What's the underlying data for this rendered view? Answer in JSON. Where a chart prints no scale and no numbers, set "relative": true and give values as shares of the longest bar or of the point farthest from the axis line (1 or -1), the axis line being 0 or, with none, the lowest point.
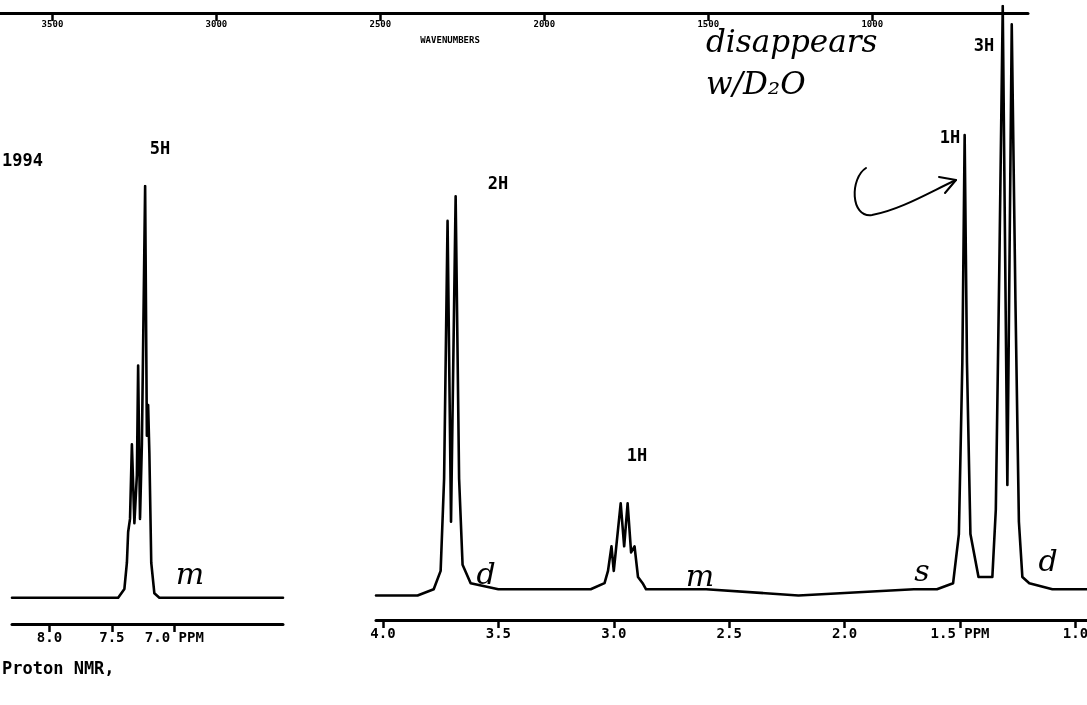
{
  "chart_data": [
    {
      "type": "line",
      "relative": true,
      "color": "#000000",
      "marker": "none",
      "grid": false,
      "x": [
        8.3,
        8.0,
        7.6,
        7.45,
        7.4,
        7.38,
        7.37,
        7.355,
        7.34,
        7.32,
        7.3,
        7.29,
        7.275,
        7.26,
        7.234,
        7.22,
        7.21,
        7.2,
        7.185,
        7.16,
        7.12,
        6.8,
        6.13
      ],
      "values": [
        0.06,
        0.06,
        0.06,
        0.06,
        0.08,
        0.14,
        0.21,
        0.24,
        0.41,
        0.23,
        0.34,
        0.59,
        0.24,
        0.41,
        1.0,
        0.43,
        0.5,
        0.39,
        0.14,
        0.07,
        0.06,
        0.06,
        0.06
      ],
      "xlim": [
        8.3,
        6.13
      ],
      "xticks": [
        {
          "value": 8.0,
          "label": "8.0"
        },
        {
          "value": 7.5,
          "label": "7.5"
        },
        {
          "value": 7.0,
          "label": "7.0 PPM"
        }
      ],
      "annotations": [
        "1994",
        "5H",
        "m",
        "Proton NMR,"
      ]
    },
    {
      "type": "line",
      "relative": true,
      "color": "#000000",
      "marker": "none",
      "grid": false,
      "x": [
        4.03,
        3.85,
        3.78,
        3.75,
        3.735,
        3.72,
        3.705,
        3.685,
        3.67,
        3.655,
        3.62,
        3.5,
        3.1,
        3.04,
        3.025,
        3.01,
        3.0,
        2.97,
        2.955,
        2.94,
        2.925,
        2.91,
        2.895,
        2.875,
        2.86,
        2.6,
        2.2,
        1.7,
        1.6,
        1.53,
        1.505,
        1.49,
        1.48,
        1.47,
        1.455,
        1.42,
        1.38,
        1.36,
        1.345,
        1.33,
        1.315,
        1.295,
        1.276,
        1.26,
        1.245,
        1.23,
        1.2,
        1.1,
        0.95
      ],
      "values": [
        0.04,
        0.04,
        0.05,
        0.08,
        0.23,
        0.65,
        0.16,
        0.69,
        0.23,
        0.09,
        0.06,
        0.05,
        0.05,
        0.06,
        0.08,
        0.12,
        0.08,
        0.19,
        0.12,
        0.19,
        0.11,
        0.12,
        0.07,
        0.06,
        0.05,
        0.05,
        0.04,
        0.05,
        0.05,
        0.06,
        0.14,
        0.42,
        0.79,
        0.42,
        0.14,
        0.07,
        0.07,
        0.07,
        0.18,
        0.57,
        1.0,
        0.22,
        0.97,
        0.52,
        0.16,
        0.07,
        0.06,
        0.05,
        0.05
      ],
      "xlim": [
        4.03,
        0.95
      ],
      "xticks": [
        {
          "value": 4.0,
          "label": "4.0"
        },
        {
          "value": 3.5,
          "label": "3.5"
        },
        {
          "value": 3.0,
          "label": "3.0"
        },
        {
          "value": 2.5,
          "label": "2.5"
        },
        {
          "value": 2.0,
          "label": "2.0"
        },
        {
          "value": 1.5,
          "label": "1.5 PPM"
        },
        {
          "value": 1.0,
          "label": "1.0"
        }
      ],
      "x2label": "WAVENUMBERS",
      "x2lim": [
        3660,
        525
      ],
      "x2ticks": [
        3500,
        3000,
        2500,
        2000,
        1500,
        1000
      ],
      "annotations": [
        "2H",
        "1H",
        "1H",
        "3H",
        "d",
        "m",
        "s",
        "d",
        "disappears w/D₂O"
      ]
    }
  ]
}
